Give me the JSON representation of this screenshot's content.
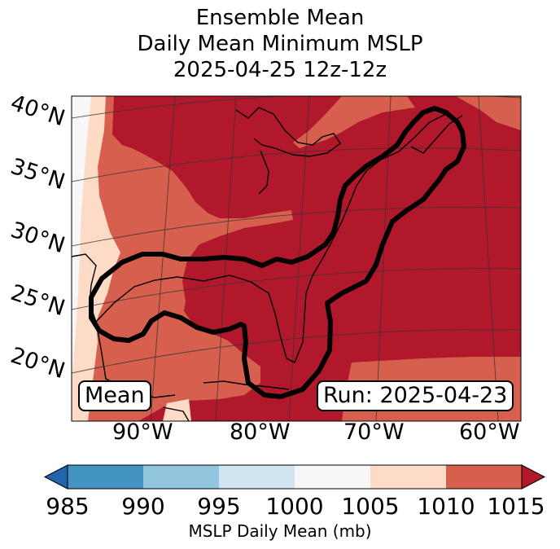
{
  "title": {
    "line1": "Ensemble Mean",
    "line2": "Daily Mean Minimum MSLP",
    "line3": "2025-04-25 12z-12z"
  },
  "map": {
    "latitude_labels": [
      "40°N",
      "35°N",
      "30°N",
      "25°N",
      "20°N"
    ],
    "longitude_labels": [
      "90°W",
      "80°W",
      "70°W",
      "60°W"
    ],
    "left_box_label": "Mean",
    "right_box_label": "Run: 2025-04-23",
    "colors": {
      "ocean_land_1015": "#b2182b",
      "fill_1010": "#d6604d",
      "fill_1005": "#fddbc7",
      "fill_1000": "#f7f7f7"
    }
  },
  "colorbar": {
    "ticks": [
      "985",
      "990",
      "995",
      "1000",
      "1005",
      "1010",
      "1015"
    ],
    "label": "MSLP Daily Mean (mb)",
    "colors": [
      "#2166ac",
      "#4393c3",
      "#92c5de",
      "#d1e5f0",
      "#f7f7f7",
      "#fddbc7",
      "#d6604d",
      "#b2182b"
    ]
  }
}
